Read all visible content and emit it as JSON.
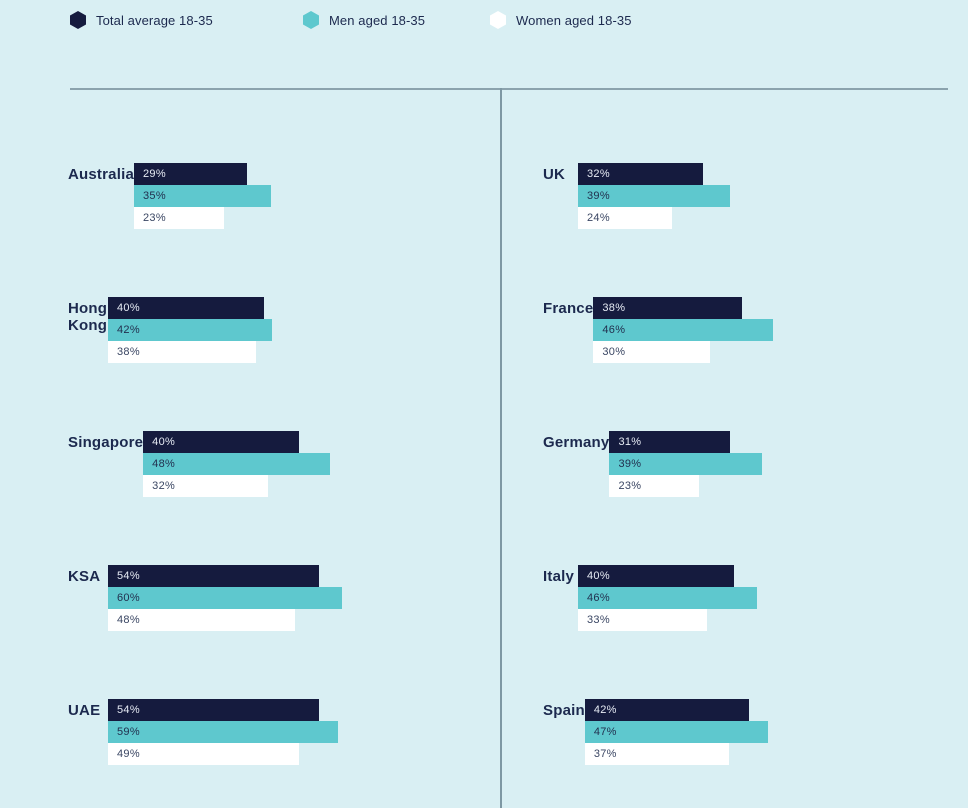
{
  "legend": {
    "items": [
      {
        "label": "Total average 18-35",
        "icon": "hexagon-icon",
        "color": "#151b3e"
      },
      {
        "label": "Men aged 18-35",
        "icon": "hexagon-icon",
        "color": "#5ec8ce"
      },
      {
        "label": "Women aged 18-35",
        "icon": "hexagon-icon",
        "color": "#ffffff"
      }
    ]
  },
  "chart_data": {
    "type": "bar",
    "orientation": "horizontal",
    "unit": "%",
    "xlim": [
      0,
      100
    ],
    "grid": false,
    "legend_position": "top",
    "series_names": [
      "Total average 18-35",
      "Men aged 18-35",
      "Women aged 18-35"
    ],
    "series_colors": [
      "#151b3e",
      "#5ec8ce",
      "#ffffff"
    ],
    "columns": {
      "left": [
        {
          "country": "Australia",
          "values": [
            29,
            35,
            23
          ]
        },
        {
          "country": "Hong Kong",
          "values": [
            40,
            42,
            38
          ]
        },
        {
          "country": "Singapore",
          "values": [
            40,
            48,
            32
          ]
        },
        {
          "country": "KSA",
          "values": [
            54,
            60,
            48
          ]
        },
        {
          "country": "UAE",
          "values": [
            54,
            59,
            49
          ]
        }
      ],
      "right": [
        {
          "country": "UK",
          "values": [
            32,
            39,
            24
          ]
        },
        {
          "country": "France",
          "values": [
            38,
            46,
            30
          ]
        },
        {
          "country": "Germany",
          "values": [
            31,
            39,
            23
          ]
        },
        {
          "country": "Italy",
          "values": [
            40,
            46,
            33
          ]
        },
        {
          "country": "Spain",
          "values": [
            42,
            47,
            37
          ]
        }
      ]
    }
  },
  "colors": {
    "background": "#d9eff3",
    "navy": "#151b3e",
    "teal": "#5ec8ce",
    "white": "#ffffff",
    "text": "#1c294e",
    "divider": "#8ba3ad"
  }
}
